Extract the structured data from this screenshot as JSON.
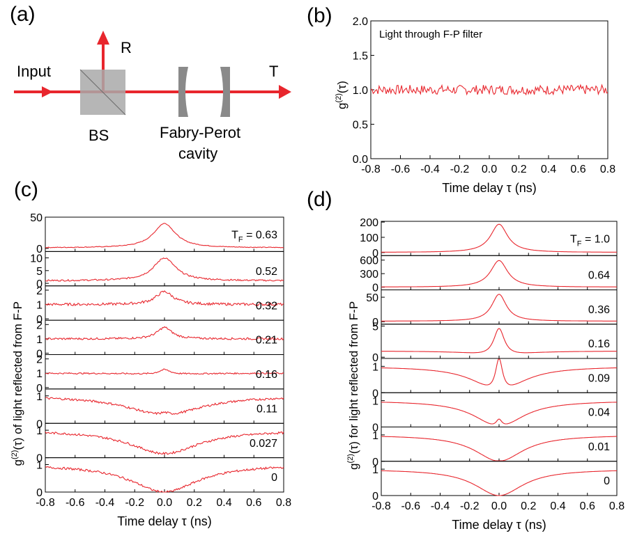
{
  "labels": {
    "a": "(a)",
    "b": "(b)",
    "c": "(c)",
    "d": "(d)"
  },
  "schematic": {
    "input": "Input",
    "reflected": "R",
    "transmitted": "T",
    "bs": "BS",
    "cavity_line1": "Fabry-Perot",
    "cavity_line2": "cavity",
    "beam_color": "#e8262d",
    "bs_color": "#a9a9a9",
    "mirror_color": "#8a8a8a"
  },
  "chart_data": [
    {
      "id": "b",
      "type": "line",
      "annotation": "Light  through F-P filter",
      "ylabel": "g(2)(τ)",
      "xlabel": "Time delay τ (ns)",
      "xlim": [
        -0.8,
        0.8
      ],
      "ylim": [
        0.0,
        2.0
      ],
      "xticks": [
        "-0.8",
        "-0.6",
        "-0.4",
        "-0.2",
        "0.0",
        "0.2",
        "0.4",
        "0.6",
        "0.8"
      ],
      "yticks": [
        "0.0",
        "0.5",
        "1.0",
        "1.5",
        "2.0"
      ],
      "line_color": "#e8262d",
      "series": [
        {
          "model": "flat",
          "level": 1.0,
          "noise": 0.07
        }
      ]
    },
    {
      "id": "c",
      "type": "line",
      "kind": "measured",
      "ylabel": "g(2)(τ) of light reflected from F-P",
      "xlabel": "Time delay τ (ns)",
      "xlim": [
        -0.8,
        0.8
      ],
      "xticks": [
        "-0.8",
        "-0.6",
        "-0.4",
        "-0.2",
        "0.0",
        "0.2",
        "0.4",
        "0.6",
        "0.8"
      ],
      "tf_prefix": "T",
      "tf_sub": "F",
      "line_color": "#e8262d",
      "series": [
        {
          "tf": "0.63",
          "ylim": [
            -5,
            50
          ],
          "yticks": [
            "0",
            "50"
          ],
          "baseline": 1.0,
          "amp": 39,
          "width": 0.09,
          "dip": 0,
          "dipw": 0.2,
          "noise": 0.6
        },
        {
          "tf": "0.52",
          "ylim": [
            -1,
            12.5
          ],
          "yticks": [
            "0",
            "5",
            "10"
          ],
          "baseline": 1.0,
          "amp": 9.0,
          "width": 0.09,
          "dip": 0,
          "dipw": 0.2,
          "noise": 0.3
        },
        {
          "tf": "0.32",
          "ylim": [
            -0.1,
            2.3
          ],
          "yticks": [
            "0",
            "1",
            "2"
          ],
          "baseline": 1.0,
          "amp": 0.9,
          "width": 0.07,
          "dip": 0,
          "dipw": 0.2,
          "noise": 0.09
        },
        {
          "tf": "0.21",
          "ylim": [
            -0.1,
            2.3
          ],
          "yticks": [
            "0",
            "1",
            "2"
          ],
          "baseline": 1.0,
          "amp": 0.8,
          "width": 0.06,
          "dip": 0,
          "dipw": 0.2,
          "noise": 0.07
        },
        {
          "tf": "0.16",
          "ylim": [
            -0.1,
            2.3
          ],
          "yticks": [
            "0",
            "1",
            "2"
          ],
          "baseline": 1.0,
          "amp": 0.35,
          "width": 0.05,
          "dip": 0.1,
          "dipw": 0.2,
          "noise": 0.05
        },
        {
          "tf": "0.11",
          "ylim": [
            0,
            1.25
          ],
          "yticks": [
            "0",
            "1"
          ],
          "baseline": 1.0,
          "amp": 0.1,
          "width": 0.04,
          "dip": 0.7,
          "dipw": 0.3,
          "noise": 0.04
        },
        {
          "tf": "0.027",
          "ylim": [
            0,
            1.25
          ],
          "yticks": [
            "0",
            "1"
          ],
          "baseline": 1.0,
          "amp": 0.0,
          "width": 0.04,
          "dip": 0.85,
          "dipw": 0.28,
          "noise": 0.04
        },
        {
          "tf": "0",
          "ylim": [
            0,
            1.25
          ],
          "yticks": [
            "0",
            "1"
          ],
          "baseline": 1.0,
          "amp": 0.0,
          "width": 0.04,
          "dip": 1.0,
          "dipw": 0.27,
          "noise": 0.04
        }
      ]
    },
    {
      "id": "d",
      "type": "line",
      "kind": "simulated",
      "ylabel": "g(2)(τ) for light reflected from F-P",
      "xlabel": "Time delay τ (ns)",
      "xlim": [
        -0.8,
        0.8
      ],
      "xticks": [
        "-0.8",
        "-0.6",
        "-0.4",
        "-0.2",
        "0.0",
        "0.2",
        "0.4",
        "0.6",
        "0.8"
      ],
      "tf_prefix": "T",
      "tf_sub": "F",
      "line_color": "#e8262d",
      "series": [
        {
          "tf": "1.0",
          "ylim": [
            -20,
            205
          ],
          "yticks": [
            "0",
            "100",
            "200"
          ],
          "baseline": 1.0,
          "amp": 185,
          "width": 0.07,
          "dip": 0,
          "dipw": 0.2
        },
        {
          "tf": "0.64",
          "ylim": [
            -60,
            700
          ],
          "yticks": [
            "0",
            "300",
            "600"
          ],
          "baseline": 1.0,
          "amp": 590,
          "width": 0.07,
          "dip": 0,
          "dipw": 0.2
        },
        {
          "tf": "0.36",
          "ylim": [
            -5,
            65
          ],
          "yticks": [
            "0",
            "50"
          ],
          "baseline": 1.0,
          "amp": 55,
          "width": 0.06,
          "dip": 0,
          "dipw": 0.2
        },
        {
          "tf": "0.16",
          "ylim": [
            -0.2,
            5.3
          ],
          "yticks": [
            "0",
            "5"
          ],
          "baseline": 1.0,
          "amp": 4.6,
          "width": 0.045,
          "dip": 1.0,
          "dipw": 0.2
        },
        {
          "tf": "0.09",
          "ylim": [
            0,
            1.3
          ],
          "yticks": [
            "0",
            "1"
          ],
          "baseline": 1.0,
          "amp": 1.3,
          "width": 0.03,
          "dip": 1.0,
          "dipw": 0.2
        },
        {
          "tf": "0.04",
          "ylim": [
            0,
            1.3
          ],
          "yticks": [
            "0",
            "1"
          ],
          "baseline": 1.0,
          "amp": 0.3,
          "width": 0.025,
          "dip": 1.0,
          "dipw": 0.2
        },
        {
          "tf": "0.01",
          "ylim": [
            0,
            1.3
          ],
          "yticks": [
            "0",
            "1"
          ],
          "baseline": 1.0,
          "amp": 0.02,
          "width": 0.02,
          "dip": 1.0,
          "dipw": 0.2
        },
        {
          "tf": "0",
          "ylim": [
            0,
            1.3
          ],
          "yticks": [
            "0",
            "1"
          ],
          "baseline": 1.0,
          "amp": 0.0,
          "width": 0.02,
          "dip": 1.0,
          "dipw": 0.2
        }
      ]
    }
  ]
}
